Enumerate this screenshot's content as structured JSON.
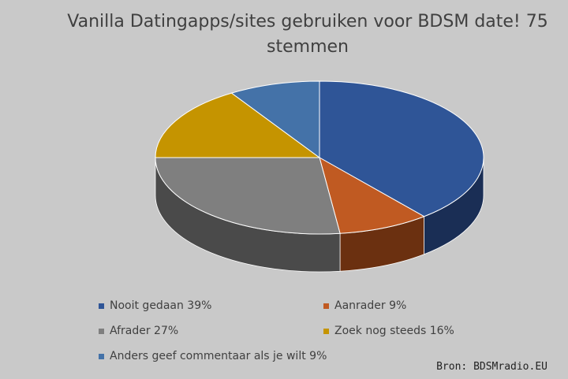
{
  "chart_data": {
    "type": "pie",
    "title": "Vanilla Datingapps/sites gebruiken voor BDSM date! 75 stemmen",
    "slices": [
      {
        "label": "Nooit gedaan 39%",
        "value": 39,
        "color": "#2f5597",
        "side": "#1a2e55"
      },
      {
        "label": "Aanrader 9%",
        "value": 9,
        "color": "#c05a22",
        "side": "#6b3010"
      },
      {
        "label": "Afrader 27%",
        "value": 27,
        "color": "#7f7f7f",
        "side": "#4a4a4a"
      },
      {
        "label": "Zoek nog steeds 16%",
        "value": 16,
        "color": "#c59400",
        "side": "#7a5c00"
      },
      {
        "label": "Anders geef commentaar als je wilt 9%",
        "value": 9,
        "color": "#4472a8",
        "side": "#2a4a72"
      }
    ],
    "legend_placement": "bottom"
  },
  "source": "Bron: BDSMradio.EU"
}
